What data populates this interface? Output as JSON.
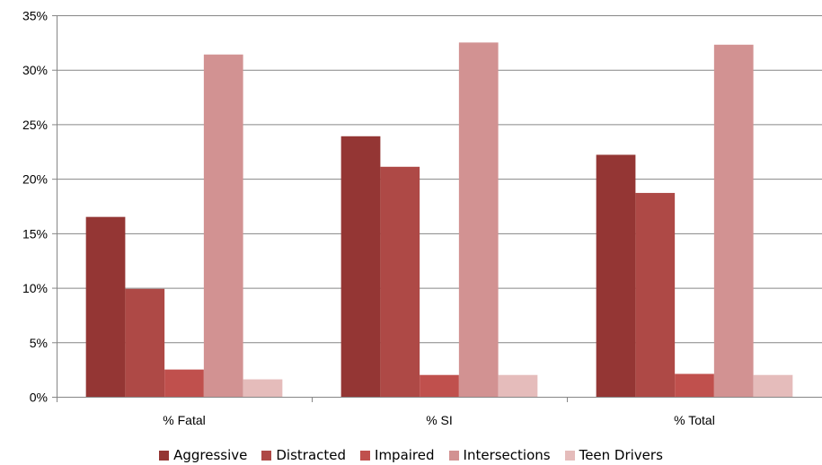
{
  "chart_data": {
    "type": "bar",
    "title": "",
    "xlabel": "",
    "ylabel": "",
    "categories": [
      "% Fatal",
      "% SI",
      "% Total"
    ],
    "series": [
      {
        "name": "Aggressive",
        "color": "#943634",
        "values": [
          16.5,
          23.9,
          22.2
        ]
      },
      {
        "name": "Distracted",
        "color": "#AE4946",
        "values": [
          9.9,
          21.1,
          18.7
        ]
      },
      {
        "name": "Impaired",
        "color": "#C0504D",
        "values": [
          2.5,
          2.0,
          2.1
        ]
      },
      {
        "name": "Intersections",
        "color": "#D29292",
        "values": [
          31.4,
          32.5,
          32.3
        ]
      },
      {
        "name": "Teen Drivers",
        "color": "#E5BCBB",
        "values": [
          1.6,
          2.0,
          2.0
        ]
      }
    ],
    "ylim": [
      0,
      35
    ],
    "yticks": [
      0,
      5,
      10,
      15,
      20,
      25,
      30,
      35
    ],
    "ytick_labels": [
      "0%",
      "5%",
      "10%",
      "15%",
      "20%",
      "25%",
      "30%",
      "35%"
    ],
    "grid": true,
    "legend_position": "bottom"
  }
}
